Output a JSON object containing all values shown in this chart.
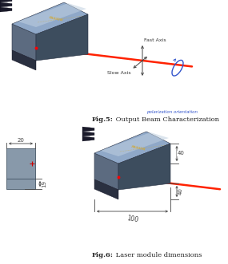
{
  "fig5_bold": "Fig.5:",
  "fig5_rest": " Output Beam Characterization",
  "fig6_bold": "Fig.6:",
  "fig6_rest": " Laser module dimensions",
  "fast_axis_label": "Fast Axis",
  "slow_axis_label": "Slow Axis",
  "polarization_label": "polarization orientation",
  "dim_100": "100",
  "dim_40_top": "40",
  "dim_40_side": "40",
  "dim_20": "20",
  "dim_19": "19",
  "bg_color": "#ffffff",
  "laser_beam_color": "#ff2200",
  "axis_arrow_color": "#444444",
  "polarization_ellipse_color": "#3355cc",
  "polarization_text_color": "#3355cc",
  "caption_color": "#222222",
  "module_front": "#5c6b80",
  "module_top": "#8fa8c8",
  "module_right": "#3d4d5e",
  "module_top_highlight": "#c0d0e0",
  "module_connector": "#2a3040",
  "cable_color": "#1a1a2a",
  "dim_line_color": "#444444",
  "side_view_body": "#8899aa",
  "side_view_connector": "#6677aa"
}
